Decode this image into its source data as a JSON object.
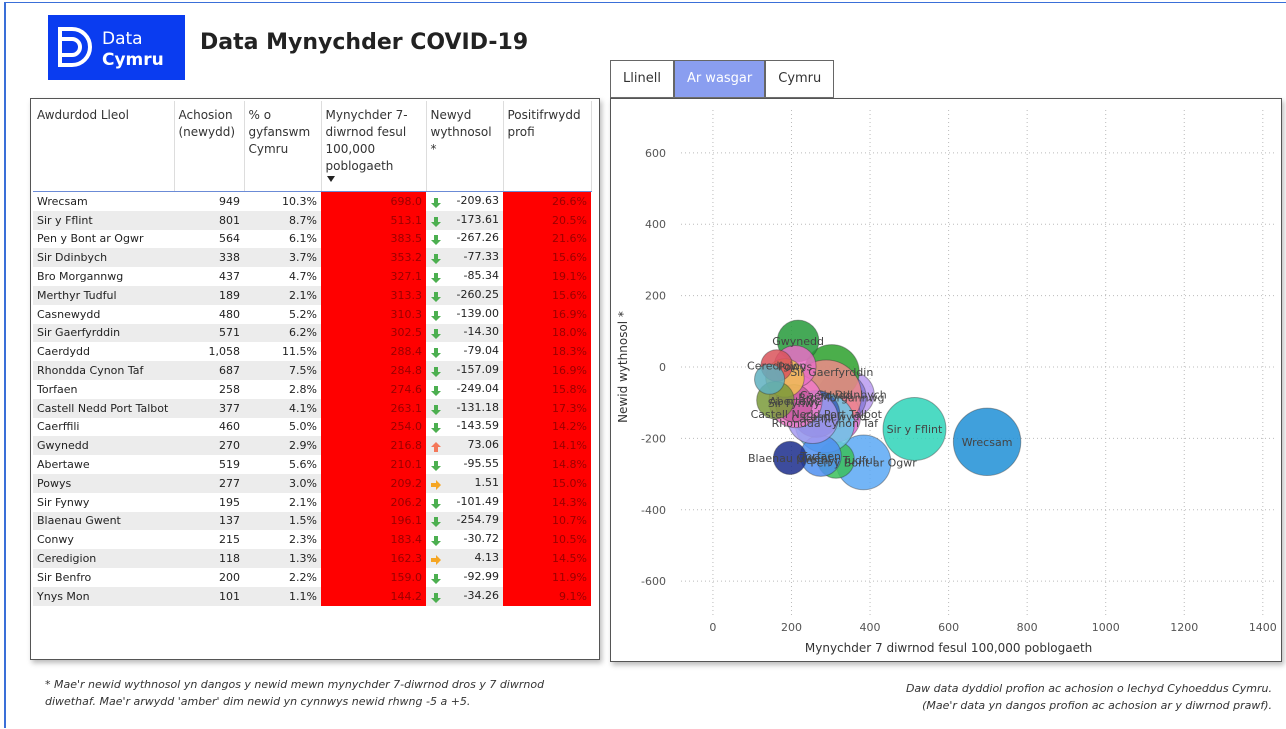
{
  "header": {
    "logo_top": "Data",
    "logo_bottom": "Cymru",
    "title": "Data Mynychder COVID-19"
  },
  "tabs": [
    "Llinell",
    "Ar wasgar",
    "Cymru"
  ],
  "table": {
    "columns": [
      "Awdurdod Lleol",
      "Achosion (newydd)",
      "% o gyfanswm Cymru",
      "Mynychder 7-diwrnod fesul 100,000 poblogaeth",
      "Newyd wythnosol *",
      "Positifrwydd profi"
    ],
    "rows": [
      [
        "Wrecsam",
        "949",
        "10.3%",
        "698.0",
        "-209.63",
        "26.6%"
      ],
      [
        "Sir y Fflint",
        "801",
        "8.7%",
        "513.1",
        "-173.61",
        "20.5%"
      ],
      [
        "Pen y Bont ar Ogwr",
        "564",
        "6.1%",
        "383.5",
        "-267.26",
        "21.6%"
      ],
      [
        "Sir Ddinbych",
        "338",
        "3.7%",
        "353.2",
        "-77.33",
        "15.6%"
      ],
      [
        "Bro Morgannwg",
        "437",
        "4.7%",
        "327.1",
        "-85.34",
        "19.1%"
      ],
      [
        "Merthyr Tudful",
        "189",
        "2.1%",
        "313.3",
        "-260.25",
        "15.6%"
      ],
      [
        "Casnewydd",
        "480",
        "5.2%",
        "310.3",
        "-139.00",
        "16.9%"
      ],
      [
        "Sir Gaerfyrddin",
        "571",
        "6.2%",
        "302.5",
        "-14.30",
        "18.0%"
      ],
      [
        "Caerdydd",
        "1,058",
        "11.5%",
        "288.4",
        "-79.04",
        "18.3%"
      ],
      [
        "Rhondda Cynon Taf",
        "687",
        "7.5%",
        "284.8",
        "-157.09",
        "16.9%"
      ],
      [
        "Torfaen",
        "258",
        "2.8%",
        "274.6",
        "-249.04",
        "15.8%"
      ],
      [
        "Castell Nedd Port Talbot",
        "377",
        "4.1%",
        "263.1",
        "-131.18",
        "17.3%"
      ],
      [
        "Caerffili",
        "460",
        "5.0%",
        "254.0",
        "-143.59",
        "14.2%"
      ],
      [
        "Gwynedd",
        "270",
        "2.9%",
        "216.8",
        "73.06",
        "14.1%"
      ],
      [
        "Abertawe",
        "519",
        "5.6%",
        "210.1",
        "-95.55",
        "14.8%"
      ],
      [
        "Powys",
        "277",
        "3.0%",
        "209.2",
        "1.51",
        "15.0%"
      ],
      [
        "Sir Fynwy",
        "195",
        "2.1%",
        "206.2",
        "-101.49",
        "14.3%"
      ],
      [
        "Blaenau Gwent",
        "137",
        "1.5%",
        "196.1",
        "-254.79",
        "10.7%"
      ],
      [
        "Conwy",
        "215",
        "2.3%",
        "183.4",
        "-30.72",
        "10.5%"
      ],
      [
        "Ceredigion",
        "118",
        "1.3%",
        "162.3",
        "4.13",
        "14.5%"
      ],
      [
        "Sir Benfro",
        "200",
        "2.2%",
        "159.0",
        "-92.99",
        "11.9%"
      ],
      [
        "Ynys Mon",
        "101",
        "1.1%",
        "144.2",
        "-34.26",
        "9.1%"
      ]
    ]
  },
  "chart_data": {
    "type": "bubble",
    "xlabel": "Mynychder 7 diwrnod fesul 100,000 poblogaeth",
    "ylabel": "Newid wythnosol *",
    "labels": [
      "Wrecsam",
      "Sir y Fflint",
      "Pen y Bont ar Ogwr",
      "Sir Ddinbych",
      "Bro Morgannwg",
      "Merthyr Tudful",
      "Casnewydd",
      "Sir Gaerfyrddin",
      "Caerdydd",
      "Rhondda Cynon Taf",
      "Torfaen",
      "Castell Nedd Port Talbot",
      "Caerffili",
      "Gwynedd",
      "Abertawe",
      "Powys",
      "Sir Fynwy",
      "Blaenau Gwent",
      null,
      "Ceredigion",
      null,
      null
    ],
    "x": [
      698.0,
      513.1,
      383.5,
      353.2,
      327.1,
      313.3,
      310.3,
      302.5,
      288.4,
      284.8,
      274.6,
      263.1,
      254.0,
      216.8,
      210.1,
      209.2,
      206.2,
      196.1,
      183.4,
      162.3,
      159.0,
      144.2
    ],
    "values": [
      -209.63,
      -173.61,
      -267.26,
      -77.33,
      -85.34,
      -260.25,
      -139.0,
      -14.3,
      -79.04,
      -157.09,
      -249.04,
      -131.18,
      -143.59,
      73.06,
      -95.55,
      1.51,
      -101.49,
      -254.79,
      -30.72,
      4.13,
      -92.99,
      -34.26
    ],
    "sizes": [
      949,
      801,
      564,
      338,
      437,
      189,
      480,
      571,
      1058,
      687,
      258,
      377,
      460,
      270,
      519,
      277,
      195,
      137,
      215,
      118,
      200,
      101
    ],
    "colors": [
      "#1f8fd6",
      "#2ed3b8",
      "#5aa8f5",
      "#b89af0",
      "#8a7ad8",
      "#3bbf5a",
      "#d96bd0",
      "#2ca02c",
      "#f08a8a",
      "#6cc7e8",
      "#4f8ff0",
      "#3960b8",
      "#a69af0",
      "#249a3a",
      "#f07ac8",
      "#e86fc6",
      "#c95aa0",
      "#1b2d8c",
      "#f0c050",
      "#d9545a",
      "#7a9a3a",
      "#5fb0c0"
    ],
    "xlim": [
      -230,
      1430
    ],
    "xticks": [
      0,
      200,
      400,
      600,
      800,
      1000,
      1200,
      1400
    ],
    "ylim": [
      -720,
      720
    ],
    "yticks": [
      -600,
      -400,
      -200,
      0,
      200,
      400,
      600
    ],
    "grid": true
  },
  "footnotes": {
    "left": "* Mae'r newid wythnosol yn dangos y newid mewn mynychder 7-diwrnod dros y 7 diwrnod diwethaf. Mae'r arwydd 'amber' dim newid yn cynnwys newid rhwng -5 a +5.",
    "right_1": "Daw data dyddiol profion ac achosion o Iechyd Cyhoeddus Cymru.",
    "right_2": "(Mae'r data yn dangos profion ac achosion ar y diwrnod prawf)."
  }
}
